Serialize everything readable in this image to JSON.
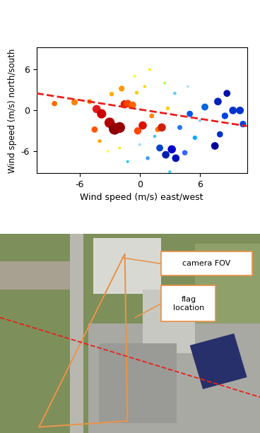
{
  "chart_data": {
    "type": "scatter",
    "xlabel": "Wind speed (m/s) east/west",
    "ylabel": "Wind speed (m/s) north/south",
    "xlim": [
      -10.3,
      10.7
    ],
    "ylim": [
      -9.2,
      9.2
    ],
    "xticks": [
      -6,
      0,
      6
    ],
    "yticks": [
      -6,
      0,
      6
    ],
    "series": [
      {
        "type": "scatter",
        "x": [
          -8.5,
          -6.5,
          -5,
          -4.3,
          -3.8,
          -3.0,
          -2.5,
          -2.0,
          -1.5,
          -1.2,
          -0.7,
          -1.8,
          -2.8,
          -0.3,
          0.5,
          -4.5,
          -4.0,
          -2.0,
          -0.2,
          0.3,
          1.2,
          1.8,
          2.2,
          2.8,
          1.0,
          -0.5,
          2.5,
          3.5,
          -1.2,
          0.8,
          2.0,
          2.6,
          3.2,
          3.6,
          4.5,
          5.5,
          7.5,
          8.0,
          4.0,
          5.0,
          6.5,
          7.8,
          8.5,
          9.3,
          10.0,
          10.3,
          8.7,
          3.0,
          -3.2,
          0.0,
          1.5,
          6.0,
          4.8
        ],
        "values": [
          1.0,
          1.2,
          1.3,
          0.2,
          -0.5,
          -1.8,
          -2.7,
          -2.5,
          0.9,
          1.0,
          0.8,
          3.2,
          2.4,
          2.6,
          3.5,
          -2.8,
          -4.5,
          -5.5,
          -3.0,
          -2.2,
          -0.8,
          -2.8,
          -2.5,
          0.3,
          6.0,
          5.0,
          4.0,
          2.5,
          -7.5,
          -7.0,
          -5.5,
          -6.5,
          -5.7,
          -7.0,
          -6.2,
          -4.0,
          -5.2,
          -3.5,
          -2.5,
          -0.5,
          0.5,
          1.3,
          -0.8,
          0.0,
          0.0,
          -2.0,
          2.5,
          -9.0,
          -6.0,
          -5.0,
          -3.8,
          -1.5,
          3.5
        ],
        "sizes": [
          30,
          40,
          25,
          70,
          90,
          110,
          140,
          120,
          70,
          60,
          50,
          35,
          20,
          15,
          10,
          40,
          15,
          8,
          55,
          70,
          25,
          30,
          70,
          15,
          8,
          6,
          8,
          12,
          8,
          15,
          50,
          60,
          70,
          60,
          30,
          20,
          60,
          40,
          25,
          40,
          50,
          60,
          45,
          60,
          60,
          45,
          50,
          10,
          6,
          8,
          10,
          8,
          6
        ],
        "colors": [
          "#ff6a00",
          "#ff7f00",
          "#ff8c00",
          "#e31a1c",
          "#cc0000",
          "#b30000",
          "#8b0000",
          "#990000",
          "#dd2200",
          "#ff4400",
          "#ff6600",
          "#ff9900",
          "#ffaa00",
          "#ffcc00",
          "#ffdd00",
          "#ff5500",
          "#ffaa00",
          "#ffee00",
          "#ff4400",
          "#dd1100",
          "#ff8800",
          "#ff7700",
          "#cc2200",
          "#ffcc00",
          "#ffee00",
          "#eeff00",
          "#aaff44",
          "#66ccff",
          "#00ccff",
          "#3399ff",
          "#0044cc",
          "#0022aa",
          "#0000cc",
          "#0011bb",
          "#3366ff",
          "#00aaff",
          "#000099",
          "#0033cc",
          "#2277ff",
          "#0055ee",
          "#0066dd",
          "#0022bb",
          "#0044dd",
          "#0033cc",
          "#0033cc",
          "#0044dd",
          "#0011aa",
          "#44ccff",
          "#ffff33",
          "#88ddff",
          "#33bbff",
          "#77ccff",
          "#99ddff"
        ]
      },
      {
        "type": "line",
        "color": "#e8201c",
        "line_style": "dashed",
        "x": [
          -10.3,
          10.7
        ],
        "values": [
          2.5,
          -2.3
        ]
      }
    ]
  },
  "map": {
    "annotations": [
      "camera FOV",
      "flag location"
    ]
  }
}
